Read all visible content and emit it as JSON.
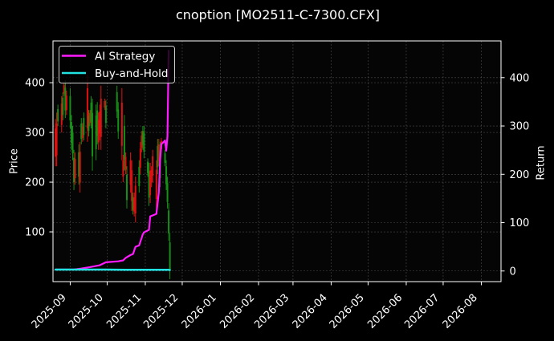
{
  "figure": {
    "title": "cnoption [MO2511-C-7300.CFX]",
    "ylabel_left": "Price",
    "ylabel_right": "Return",
    "legend": [
      {
        "label": "AI Strategy",
        "color": "#ff1aff"
      },
      {
        "label": "Buy-and-Hold",
        "color": "#20e3e3"
      }
    ]
  },
  "chart_data": {
    "type": "candlestick",
    "title": "cnoption [MO2511-C-7300.CFX]",
    "xlabel": "",
    "ylabel": "Price",
    "ylabel_right": "Return",
    "xlim": [
      "2025-08-18",
      "2026-08-17"
    ],
    "ylim": [
      0,
      484
    ],
    "ylim_right": [
      -22,
      476
    ],
    "x_ticks": [
      "2025-09",
      "2025-10",
      "2025-11",
      "2025-12",
      "2026-01",
      "2026-02",
      "2026-03",
      "2026-04",
      "2026-05",
      "2026-06",
      "2026-07",
      "2026-08"
    ],
    "y_ticks": [
      100,
      200,
      300,
      400
    ],
    "y_ticks_right": [
      0,
      100,
      200,
      300,
      400
    ],
    "grid": true,
    "legend_position": "upper left",
    "candle_colors": {
      "up": "#e01010",
      "down": "#169016"
    },
    "candles": {
      "columns": [
        "date",
        "open",
        "high",
        "low",
        "close"
      ],
      "rows": [
        [
          "2025-08-20",
          251,
          327,
          232,
          308
        ],
        [
          "2025-08-21",
          254,
          340,
          232,
          318
        ],
        [
          "2025-08-22",
          347,
          356,
          313,
          322
        ],
        [
          "2025-08-25",
          315,
          373,
          300,
          358
        ],
        [
          "2025-08-26",
          370,
          381,
          324,
          335
        ],
        [
          "2025-08-27",
          378,
          400,
          373,
          395
        ],
        [
          "2025-08-28",
          390,
          405,
          329,
          344
        ],
        [
          "2025-08-29",
          345,
          384,
          335,
          374
        ],
        [
          "2025-09-01",
          373,
          389,
          308,
          324
        ],
        [
          "2025-09-02",
          321,
          335,
          265,
          279
        ],
        [
          "2025-09-03",
          299,
          313,
          244,
          258
        ],
        [
          "2025-09-04",
          249,
          265,
          184,
          200
        ],
        [
          "2025-09-05",
          208,
          260,
          195,
          247
        ],
        [
          "2025-09-08",
          260,
          276,
          195,
          211
        ],
        [
          "2025-09-09",
          199,
          281,
          179,
          261
        ],
        [
          "2025-09-10",
          318,
          329,
          276,
          287
        ],
        [
          "2025-09-11",
          289,
          319,
          281,
          311
        ],
        [
          "2025-09-12",
          329,
          340,
          284,
          295
        ],
        [
          "2025-09-15",
          308,
          416,
          281,
          389
        ],
        [
          "2025-09-16",
          334,
          345,
          292,
          303
        ],
        [
          "2025-09-17",
          319,
          345,
          313,
          339
        ],
        [
          "2025-09-18",
          360,
          373,
          308,
          321
        ],
        [
          "2025-09-19",
          339,
          368,
          223,
          252
        ],
        [
          "2025-09-22",
          334,
          356,
          244,
          266
        ],
        [
          "2025-09-23",
          344,
          361,
          276,
          293
        ],
        [
          "2025-09-24",
          280,
          340,
          265,
          325
        ],
        [
          "2025-09-25",
          298,
          356,
          284,
          342
        ],
        [
          "2025-09-26",
          291,
          394,
          265,
          368
        ],
        [
          "2025-09-29",
          350,
          368,
          345,
          363
        ],
        [
          "2025-09-30",
          354,
          365,
          308,
          319
        ],
        [
          "2025-10-09",
          381,
          394,
          329,
          342
        ],
        [
          "2025-10-10",
          346,
          361,
          287,
          302
        ],
        [
          "2025-10-13",
          273,
          389,
          244,
          360
        ],
        [
          "2025-10-14",
          211,
          255,
          200,
          244
        ],
        [
          "2025-10-15",
          313,
          335,
          223,
          245
        ],
        [
          "2025-10-16",
          225,
          260,
          216,
          251
        ],
        [
          "2025-10-17",
          215,
          232,
          147,
          164
        ],
        [
          "2025-10-20",
          195,
          260,
          179,
          244
        ],
        [
          "2025-10-21",
          162,
          244,
          142,
          224
        ],
        [
          "2025-10-22",
          170,
          179,
          135,
          144
        ],
        [
          "2025-10-23",
          141,
          179,
          131,
          169
        ],
        [
          "2025-10-24",
          137,
          211,
          119,
          193
        ],
        [
          "2025-10-27",
          231,
          244,
          179,
          192
        ],
        [
          "2025-10-28",
          229,
          281,
          216,
          268
        ],
        [
          "2025-10-29",
          269,
          303,
          260,
          294
        ],
        [
          "2025-10-30",
          303,
          313,
          265,
          275
        ],
        [
          "2025-10-31",
          300,
          313,
          248,
          261
        ],
        [
          "2025-11-03",
          241,
          248,
          211,
          218
        ],
        [
          "2025-11-04",
          222,
          239,
          152,
          169
        ],
        [
          "2025-11-05",
          174,
          239,
          158,
          223
        ],
        [
          "2025-11-06",
          198,
          232,
          190,
          224
        ],
        [
          "2025-11-07",
          213,
          265,
          200,
          252
        ],
        [
          "2025-11-10",
          166,
          244,
          147,
          225
        ],
        [
          "2025-11-11",
          273,
          287,
          216,
          230
        ],
        [
          "2025-11-12",
          243,
          287,
          232,
          276
        ],
        [
          "2025-11-13",
          263,
          281,
          190,
          208
        ],
        [
          "2025-11-14",
          266,
          289,
          260,
          283
        ],
        [
          "2025-11-17",
          258,
          265,
          232,
          239
        ],
        [
          "2025-11-18",
          232,
          244,
          184,
          196
        ],
        [
          "2025-11-19",
          198,
          211,
          147,
          160
        ],
        [
          "2025-11-20",
          143,
          158,
          82,
          97
        ],
        [
          "2025-11-21",
          79,
          98,
          5,
          24
        ]
      ]
    },
    "series": [
      {
        "name": "AI Strategy",
        "axis": "right",
        "color": "#ff1aff",
        "points": [
          [
            "2025-08-20",
            3
          ],
          [
            "2025-09-04",
            3
          ],
          [
            "2025-09-10",
            5
          ],
          [
            "2025-09-17",
            8
          ],
          [
            "2025-09-25",
            12
          ],
          [
            "2025-09-30",
            18
          ],
          [
            "2025-10-10",
            20
          ],
          [
            "2025-10-14",
            22
          ],
          [
            "2025-10-16",
            27
          ],
          [
            "2025-10-20",
            33
          ],
          [
            "2025-10-22",
            35
          ],
          [
            "2025-10-24",
            50
          ],
          [
            "2025-10-27",
            53
          ],
          [
            "2025-10-30",
            76
          ],
          [
            "2025-10-31",
            80
          ],
          [
            "2025-11-04",
            85
          ],
          [
            "2025-11-05",
            113
          ],
          [
            "2025-11-10",
            118
          ],
          [
            "2025-11-12",
            163
          ],
          [
            "2025-11-13",
            229
          ],
          [
            "2025-11-14",
            262
          ],
          [
            "2025-11-17",
            270
          ],
          [
            "2025-11-18",
            249
          ],
          [
            "2025-11-19",
            279
          ],
          [
            "2025-11-20",
            456
          ]
        ]
      },
      {
        "name": "Buy-and-Hold",
        "axis": "right",
        "color": "#20e3e3",
        "points": [
          [
            "2025-08-20",
            3
          ],
          [
            "2025-09-30",
            3
          ],
          [
            "2025-10-16",
            2.5
          ],
          [
            "2025-11-20",
            2.5
          ],
          [
            "2025-11-21",
            2
          ]
        ]
      }
    ]
  }
}
